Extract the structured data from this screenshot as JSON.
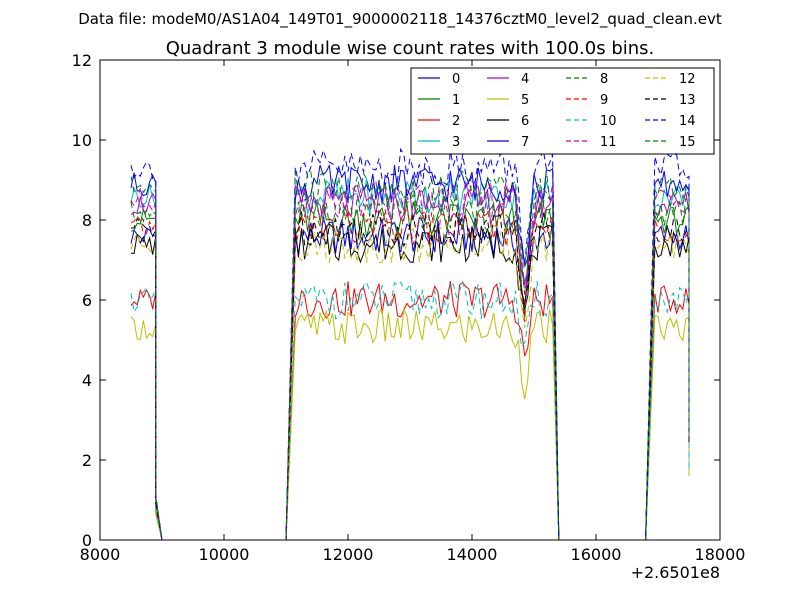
{
  "chart_data": {
    "type": "line",
    "suptitle": "Data file: modeM0/AS1A04_149T01_9000002118_14376cztM0_level2_quad_clean.evt",
    "title": "Quadrant 3 module wise count rates with 100.0s bins.",
    "x_offset_label": "+2.6501e8",
    "xlim": [
      8000,
      18000
    ],
    "ylim": [
      0,
      12
    ],
    "xticks": [
      8000,
      10000,
      12000,
      14000,
      16000,
      18000
    ],
    "xtick_labels": [
      "8000",
      "10000",
      "12000",
      "14000",
      "16000",
      "18000"
    ],
    "yticks": [
      0,
      2,
      4,
      6,
      8,
      10,
      12
    ],
    "ytick_labels": [
      "0",
      "2",
      "4",
      "6",
      "8",
      "10",
      "12"
    ],
    "grid": false,
    "legend_position": "top-right",
    "legend_columns": 4,
    "segments": [
      {
        "start": 8500,
        "end": 8900,
        "fall_end": 9000
      },
      {
        "start": 11000,
        "rise_end": 11150,
        "end": 15300,
        "fall_end": 15400
      },
      {
        "start": 16800,
        "rise_end": 16950,
        "end": 17500
      }
    ],
    "dip": {
      "x": 14850,
      "depth": 0.25
    },
    "series": [
      {
        "name": "0",
        "color": "#0000ff",
        "dash": "solid",
        "level": 7.6
      },
      {
        "name": "1",
        "color": "#008000",
        "dash": "solid",
        "level": 8.0
      },
      {
        "name": "2",
        "color": "#ff0000",
        "dash": "solid",
        "level": 6.0
      },
      {
        "name": "3",
        "color": "#00bfbf",
        "dash": "solid",
        "level": 8.6
      },
      {
        "name": "4",
        "color": "#bf00bf",
        "dash": "solid",
        "level": 8.4
      },
      {
        "name": "5",
        "color": "#bfbf00",
        "dash": "solid",
        "level": 5.3
      },
      {
        "name": "6",
        "color": "#000000",
        "dash": "solid",
        "level": 7.4
      },
      {
        "name": "7",
        "color": "#0000ff",
        "dash": "solid",
        "level": 8.9
      },
      {
        "name": "8",
        "color": "#008000",
        "dash": "dashed",
        "level": 8.2
      },
      {
        "name": "9",
        "color": "#ff0000",
        "dash": "dashed",
        "level": 7.8
      },
      {
        "name": "10",
        "color": "#00bfbf",
        "dash": "dashed",
        "level": 6.0
      },
      {
        "name": "11",
        "color": "#bf00bf",
        "dash": "dashed",
        "level": 8.5
      },
      {
        "name": "12",
        "color": "#bfbf00",
        "dash": "dashed",
        "level": 7.4
      },
      {
        "name": "13",
        "color": "#000000",
        "dash": "dashed",
        "level": 7.8
      },
      {
        "name": "14",
        "color": "#0000ff",
        "dash": "dashed",
        "level": 9.3
      },
      {
        "name": "15",
        "color": "#008000",
        "dash": "dashed",
        "level": 8.8
      }
    ]
  }
}
